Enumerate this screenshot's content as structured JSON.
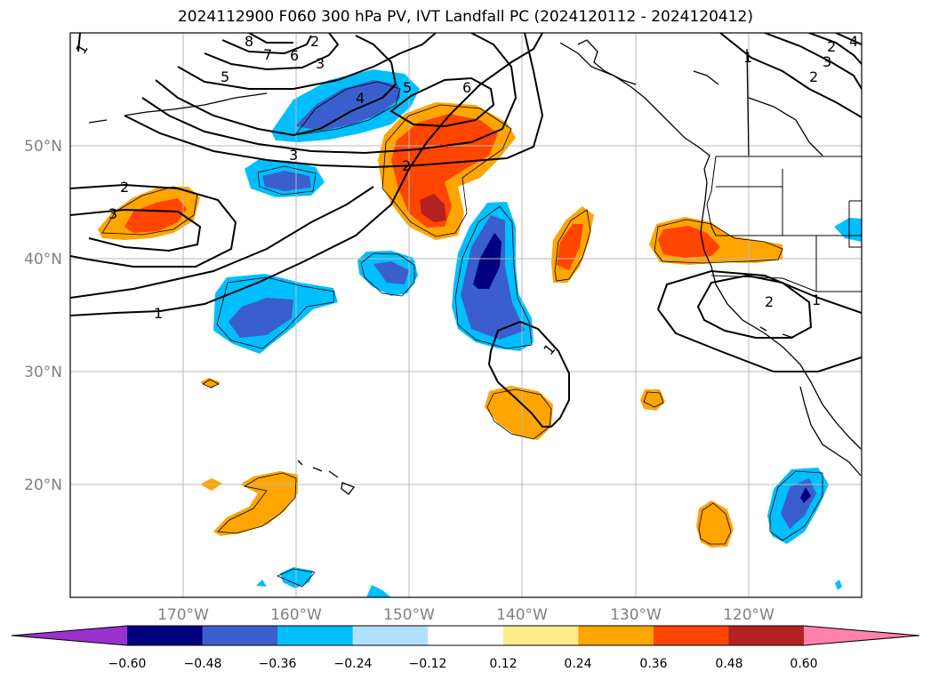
{
  "title": "2024112900 F060 300 hPa PV, IVT Landfall PC (2024120112 - 2024120412)",
  "map": {
    "projection": "PlateCarree",
    "extent_lon": [
      -180,
      -110
    ],
    "extent_lat": [
      10,
      60
    ],
    "grid": true,
    "lat_ticks": [
      {
        "lat": 20,
        "label": "20°N"
      },
      {
        "lat": 30,
        "label": "30°N"
      },
      {
        "lat": 40,
        "label": "40°N"
      },
      {
        "lat": 50,
        "label": "50°N"
      }
    ],
    "lon_ticks": [
      {
        "lon": -170,
        "label": "170°W"
      },
      {
        "lon": -160,
        "label": "160°W"
      },
      {
        "lon": -150,
        "label": "150°W"
      },
      {
        "lon": -140,
        "label": "140°W"
      },
      {
        "lon": -130,
        "label": "130°W"
      },
      {
        "lon": -120,
        "label": "120°W"
      }
    ],
    "contour_labels": [
      "1",
      "2",
      "3",
      "4",
      "5",
      "6",
      "7",
      "8",
      "1",
      "2",
      "3",
      "2",
      "3",
      "1",
      "4",
      "5",
      "6",
      "3",
      "2",
      "2",
      "1",
      "1",
      "2"
    ]
  },
  "colorbar": {
    "colors": [
      "#9932cc",
      "#000080",
      "#3a5fcd",
      "#00bfff",
      "#b0e2ff",
      "#ffffff",
      "#ffec8b",
      "#ffa500",
      "#ff4500",
      "#b22222",
      "#ff82ab"
    ],
    "tick_labels": [
      "−0.60",
      "−0.48",
      "−0.36",
      "−0.24",
      "−0.12",
      "0.12",
      "0.24",
      "0.36",
      "0.48",
      "0.60"
    ]
  }
}
